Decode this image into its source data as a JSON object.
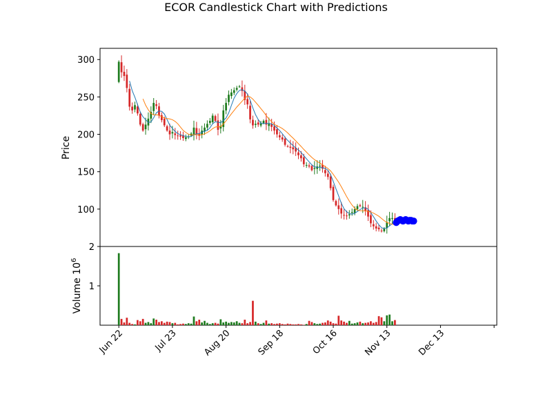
{
  "chart_data": {
    "type": "candlestick",
    "title": "ECOR Candlestick Chart with Predictions",
    "price_panel": {
      "ylabel": "Price",
      "ylim": [
        50,
        315
      ],
      "yticks": [
        100,
        150,
        200,
        250,
        300
      ],
      "ytick_labels": [
        "100",
        "150",
        "200",
        "250",
        "300"
      ]
    },
    "volume_panel": {
      "ylabel": "Volume  10",
      "ylabel_exponent": "6",
      "ylim": [
        0,
        2.0
      ],
      "yticks": [
        1,
        2
      ],
      "ytick_labels": [
        "1",
        "2"
      ]
    },
    "xticks": [
      {
        "label": "Jun 22",
        "index": 0
      },
      {
        "label": "Jul 23",
        "index": 20
      },
      {
        "label": "Aug 20",
        "index": 40
      },
      {
        "label": "Sep 18",
        "index": 60
      },
      {
        "label": "Oct 16",
        "index": 80
      },
      {
        "label": "Nov 13",
        "index": 100
      },
      {
        "label": "Dec 13",
        "index": 120
      },
      {
        "label": "",
        "index": 140
      }
    ],
    "x_range": [
      -7,
      141
    ],
    "colors": {
      "up": "#1e7b1e",
      "down": "#d62728",
      "ma_short": "#1f77b4",
      "ma_long": "#ff7f0e",
      "prediction": "#0000ff"
    },
    "ma_windows": [
      5,
      10
    ],
    "close": [
      297,
      283,
      278,
      262,
      237,
      232,
      239,
      228,
      213,
      205,
      213,
      221,
      230,
      242,
      238,
      225,
      219,
      212,
      205,
      200,
      203,
      199,
      198,
      197,
      195,
      196,
      197,
      201,
      209,
      200,
      198,
      205,
      209,
      214,
      218,
      225,
      218,
      206,
      211,
      232,
      242,
      253,
      256,
      259,
      262,
      264,
      258,
      246,
      240,
      220,
      212,
      214,
      213,
      215,
      218,
      213,
      214,
      210,
      205,
      200,
      196,
      193,
      186,
      184,
      182,
      180,
      177,
      172,
      168,
      160,
      159,
      157,
      152,
      155,
      157,
      158,
      154,
      148,
      143,
      128,
      112,
      105,
      100,
      94,
      92,
      91,
      93,
      96,
      100,
      104,
      104,
      103,
      98,
      90,
      81,
      77,
      74,
      73,
      71,
      74,
      82,
      88,
      88,
      85
    ],
    "volume": [
      1.83,
      0.16,
      0.07,
      0.19,
      0.06,
      0.03,
      0.02,
      0.13,
      0.1,
      0.16,
      0.06,
      0.08,
      0.05,
      0.17,
      0.14,
      0.08,
      0.1,
      0.06,
      0.09,
      0.08,
      0.05,
      0.06,
      0.02,
      0.03,
      0.04,
      0.03,
      0.05,
      0.04,
      0.22,
      0.1,
      0.14,
      0.07,
      0.11,
      0.06,
      0.03,
      0.05,
      0.06,
      0.04,
      0.15,
      0.07,
      0.09,
      0.06,
      0.08,
      0.07,
      0.1,
      0.06,
      0.05,
      0.14,
      0.05,
      0.08,
      0.62,
      0.09,
      0.05,
      0.03,
      0.06,
      0.12,
      0.04,
      0.05,
      0.03,
      0.04,
      0.05,
      0.03,
      0.02,
      0.04,
      0.03,
      0.02,
      0.02,
      0.03,
      0.02,
      0.01,
      0.03,
      0.11,
      0.08,
      0.05,
      0.03,
      0.04,
      0.06,
      0.07,
      0.12,
      0.09,
      0.05,
      0.04,
      0.24,
      0.12,
      0.09,
      0.06,
      0.11,
      0.04,
      0.05,
      0.07,
      0.09,
      0.05,
      0.06,
      0.07,
      0.1,
      0.06,
      0.08,
      0.23,
      0.2,
      0.1,
      0.25,
      0.27,
      0.1,
      0.13
    ],
    "predictions": [
      82,
      84,
      85,
      86,
      85,
      84,
      85,
      86,
      85,
      84,
      85,
      85,
      84,
      84
    ]
  }
}
